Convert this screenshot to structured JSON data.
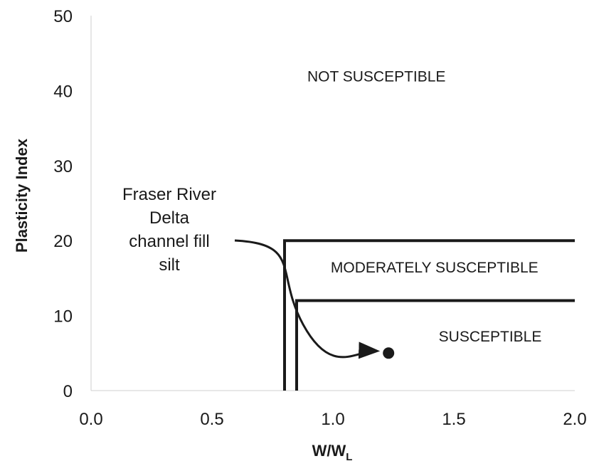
{
  "chart_data": {
    "type": "scatter",
    "xlabel": "W/W",
    "xlabel_subscript": "L",
    "ylabel": "Plasticity Index",
    "xlim": [
      0.0,
      2.0
    ],
    "ylim": [
      0,
      50
    ],
    "x_ticks": [
      "0.0",
      "0.5",
      "1.0",
      "1.5",
      "2.0"
    ],
    "y_ticks": [
      "0",
      "10",
      "20",
      "30",
      "40",
      "50"
    ],
    "grid": false,
    "regions": [
      {
        "label": "NOT SUSCEPTIBLE"
      },
      {
        "label": "MODERATELY SUSCEPTIBLE",
        "boundary": {
          "x_min": 0.8,
          "pi_max": 20
        }
      },
      {
        "label": "SUSCEPTIBLE",
        "boundary": {
          "x_min": 0.85,
          "pi_max": 12
        }
      }
    ],
    "points": [
      {
        "x": 1.23,
        "y": 5
      }
    ],
    "annotation": {
      "lines": [
        "Fraser River",
        "Delta",
        "channel fill",
        "silt"
      ]
    }
  }
}
